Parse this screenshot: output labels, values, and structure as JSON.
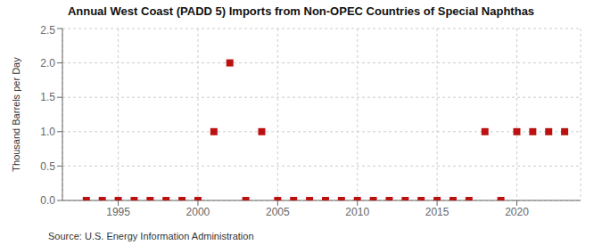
{
  "chart_data": {
    "type": "scatter",
    "title": "Annual West Coast (PADD 5) Imports from Non-OPEC Countries of Special Naphthas",
    "ylabel": "Thousand Barrels per Day",
    "source": "Source: U.S. Energy Information Administration",
    "x": [
      1993,
      1994,
      1995,
      1996,
      1997,
      1998,
      1999,
      2000,
      2001,
      2002,
      2003,
      2004,
      2005,
      2006,
      2007,
      2008,
      2009,
      2010,
      2011,
      2012,
      2013,
      2014,
      2015,
      2016,
      2017,
      2018,
      2019,
      2020,
      2021,
      2022,
      2023
    ],
    "values": [
      0.0,
      0.0,
      0.0,
      0.0,
      0.0,
      0.0,
      0.0,
      0.0,
      1.0,
      2.0,
      0.0,
      1.0,
      0.0,
      0.0,
      0.0,
      0.0,
      0.0,
      0.0,
      0.0,
      0.0,
      0.0,
      0.0,
      0.0,
      0.0,
      0.0,
      1.0,
      0.0,
      1.0,
      1.0,
      1.0,
      1.0
    ],
    "color": "#bb1111",
    "marker": "square",
    "xlim": [
      1991.5,
      2024
    ],
    "xticks": [
      1995,
      2000,
      2005,
      2010,
      2015,
      2020
    ],
    "ylim": [
      0,
      2.5
    ],
    "yticks": [
      {
        "value": 0,
        "label": "0.0"
      },
      0.5,
      {
        "value": 1,
        "label": "1.0"
      },
      1.5,
      {
        "value": 2,
        "label": "2.0"
      },
      2.5
    ],
    "grid": true
  }
}
